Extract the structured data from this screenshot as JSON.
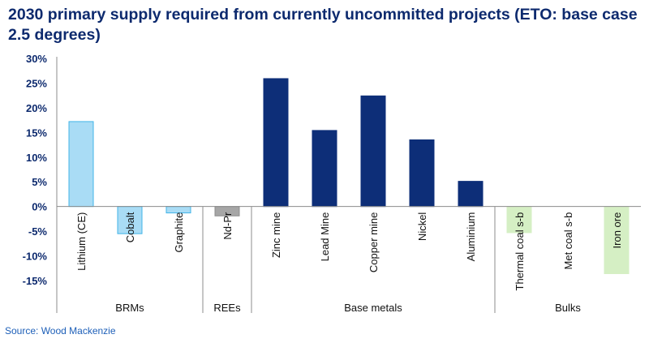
{
  "chart_data": {
    "type": "bar",
    "title": "2030 primary supply required from currently uncommitted projects (ETO: base case 2.5 degrees)",
    "ylabel": "",
    "ylim": [
      -15,
      30
    ],
    "yticks": [
      "30%",
      "25%",
      "20%",
      "15%",
      "10%",
      "5%",
      "0%",
      "-5%",
      "-10%",
      "-15%"
    ],
    "grid": false,
    "categories": [
      "Lithium (CE)",
      "Cobalt",
      "Graphite",
      "Nd-Pr",
      "Zinc mine",
      "Lead Mine",
      "Copper mine",
      "Nickel",
      "Aluminium",
      "Thermal coal s-b",
      "Met coal s-b",
      "Iron ore"
    ],
    "values": [
      17.2,
      -5.5,
      -1.3,
      -1.9,
      25.9,
      15.4,
      22.4,
      13.5,
      5.1,
      -5.3,
      0,
      -13.6
    ],
    "groups": [
      {
        "label": "BRMs",
        "from": 0,
        "to": 2
      },
      {
        "label": "REEs",
        "from": 3,
        "to": 3
      },
      {
        "label": "Base metals",
        "from": 4,
        "to": 8
      },
      {
        "label": "Bulks",
        "from": 9,
        "to": 11
      }
    ],
    "colors": [
      "#a9dcf5",
      "#a9dcf5",
      "#a9dcf5",
      "#a6a6a6",
      "#0d2e78",
      "#0d2e78",
      "#0d2e78",
      "#0d2e78",
      "#0d2e78",
      "#d5efc4",
      "#d5efc4",
      "#d5efc4"
    ],
    "edge_colors": [
      "#41b4e8",
      "#41b4e8",
      "#41b4e8",
      "#8c8c8c",
      "#0d2e78",
      "#0d2e78",
      "#0d2e78",
      "#0d2e78",
      "#0d2e78",
      "#d5efc4",
      "#d5efc4",
      "#d5efc4"
    ]
  },
  "source": "Source: Wood Mackenzie"
}
